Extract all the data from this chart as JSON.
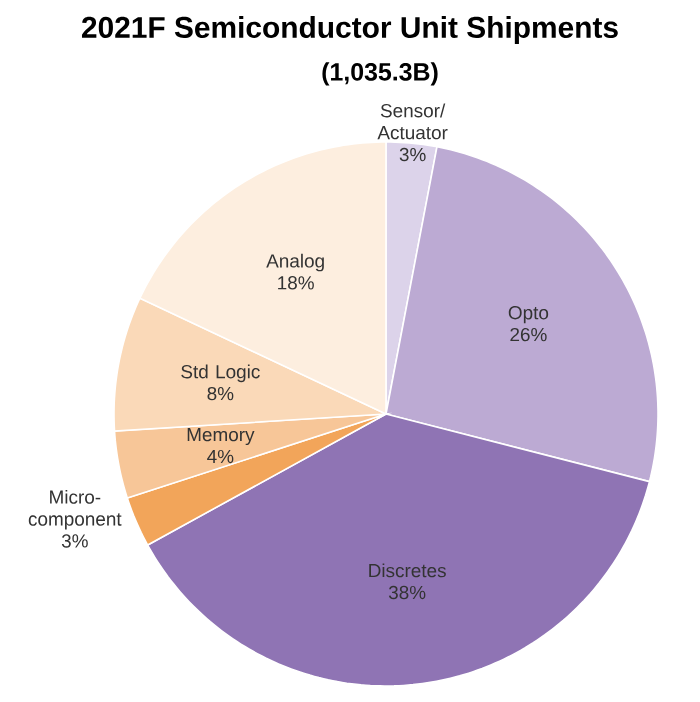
{
  "chart_data": {
    "type": "pie",
    "title": "2021F Semiconductor Unit Shipments",
    "subtitle": "(1,035.3B)",
    "categories": [
      "Sensor/ Actuator",
      "Opto",
      "Discretes",
      "Micro-component",
      "Memory",
      "Std Logic",
      "Analog"
    ],
    "values": [
      3,
      26,
      38,
      3,
      4,
      8,
      18
    ],
    "value_labels": [
      "3%",
      "26%",
      "38%",
      "3%",
      "4%",
      "8%",
      "18%"
    ],
    "colors": [
      "#dcd3ea",
      "#bcaad3",
      "#8f74b4",
      "#f2a55a",
      "#f7c698",
      "#fad9b8",
      "#fdeedf"
    ]
  }
}
